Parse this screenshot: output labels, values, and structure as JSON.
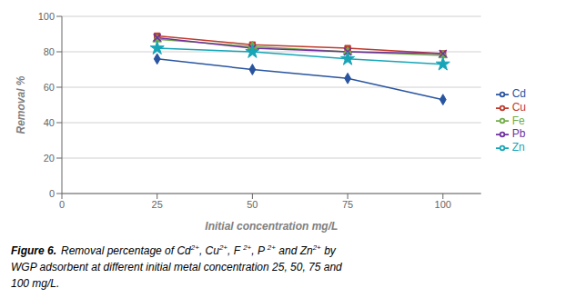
{
  "chart_data": {
    "type": "line",
    "x": [
      25,
      50,
      75,
      100
    ],
    "series": [
      {
        "name": "Cd",
        "color": "#2955a0",
        "marker": "diamond",
        "values": [
          76,
          70,
          65,
          53
        ]
      },
      {
        "name": "Cu",
        "color": "#c0392b",
        "marker": "square",
        "values": [
          89,
          84,
          82,
          79
        ]
      },
      {
        "name": "Fe",
        "color": "#70ad47",
        "marker": "triangle",
        "values": [
          87,
          83,
          80,
          78
        ]
      },
      {
        "name": "Pb",
        "color": "#7030a0",
        "marker": "x",
        "values": [
          88,
          82,
          80,
          79
        ]
      },
      {
        "name": "Zn",
        "color": "#17a5b8",
        "marker": "star",
        "values": [
          82,
          80,
          76,
          73
        ]
      }
    ],
    "xlabel": "Initial concentration  mg/L",
    "ylabel": "Removal %",
    "xlim": [
      0,
      110
    ],
    "ylim": [
      0,
      100
    ],
    "xticks": [
      0,
      25,
      50,
      75,
      100
    ],
    "yticks": [
      0,
      20,
      40,
      60,
      80,
      100
    ],
    "grid": true,
    "legend": "right",
    "caption": [
      [
        {
          "text": "Figure 6.",
          "bold": true
        },
        {
          "text": "Removal percentage of Cd"
        },
        {
          "text": "2+",
          "superscript": true
        },
        {
          "text": ", Cu"
        },
        {
          "text": "2+",
          "superscript": true
        },
        {
          "text": ", F "
        },
        {
          "text": "2+",
          "superscript": true
        },
        {
          "text": ", P "
        },
        {
          "text": "2+",
          "superscript": true
        },
        {
          "text": " and Zn"
        },
        {
          "text": "2+",
          "superscript": true
        },
        {
          "text": " by"
        }
      ],
      [
        {
          "text": "WGP adsorbent at different initial metal concentration 25, 50, 75 and"
        }
      ],
      [
        {
          "text": "100 mg/L."
        }
      ]
    ]
  }
}
